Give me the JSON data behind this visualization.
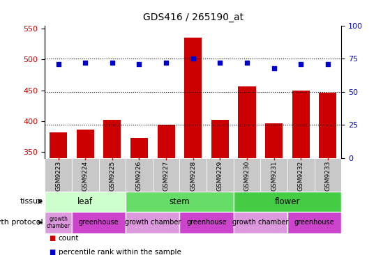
{
  "title": "GDS416 / 265190_at",
  "samples": [
    "GSM9223",
    "GSM9224",
    "GSM9225",
    "GSM9226",
    "GSM9227",
    "GSM9228",
    "GSM9229",
    "GSM9230",
    "GSM9231",
    "GSM9232",
    "GSM9233"
  ],
  "counts": [
    382,
    386,
    402,
    373,
    394,
    535,
    402,
    456,
    396,
    449,
    446
  ],
  "percentiles": [
    71,
    72,
    72,
    71,
    72,
    75,
    72,
    72,
    68,
    71,
    71
  ],
  "ylim_left": [
    340,
    555
  ],
  "ylim_right": [
    0,
    100
  ],
  "yticks_left": [
    350,
    400,
    450,
    500,
    550
  ],
  "yticks_right": [
    0,
    25,
    50,
    75,
    100
  ],
  "bar_color": "#cc0000",
  "dot_color": "#0000cc",
  "tissue_ranges": {
    "leaf": [
      0,
      3
    ],
    "stem": [
      3,
      7
    ],
    "flower": [
      7,
      11
    ]
  },
  "tissue_colors": {
    "leaf": "#ccffcc",
    "stem": "#66dd66",
    "flower": "#44cc44"
  },
  "growth_segs": [
    [
      "growth\nchamber",
      0,
      1,
      "growth_chamber"
    ],
    [
      "greenhouse",
      1,
      3,
      "greenhouse"
    ],
    [
      "growth chamber",
      3,
      5,
      "growth_chamber"
    ],
    [
      "greenhouse",
      5,
      7,
      "greenhouse"
    ],
    [
      "growth chamber",
      7,
      9,
      "growth_chamber"
    ],
    [
      "greenhouse",
      9,
      11,
      "greenhouse"
    ]
  ],
  "growth_colors": {
    "growth_chamber": "#dd99dd",
    "greenhouse": "#cc44cc"
  },
  "label_tissue": "tissue",
  "label_growth": "growth protocol",
  "legend_count": "count",
  "legend_percentile": "percentile rank within the sample",
  "gray_box_color": "#c8c8c8",
  "dotted_line_pcts": [
    75,
    50,
    25
  ]
}
